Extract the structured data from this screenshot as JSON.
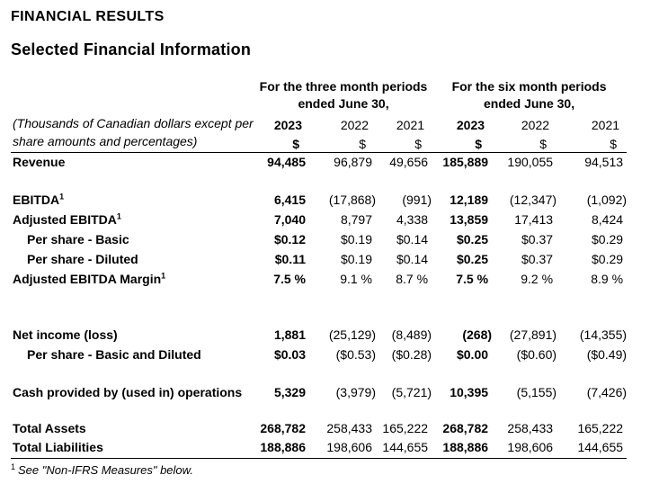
{
  "page": {
    "title": "FINANCIAL RESULTS",
    "subtitle": "Selected Financial Information"
  },
  "table": {
    "groups": [
      {
        "line1": "For the three month periods",
        "line2": "ended June 30,"
      },
      {
        "line1": "For the six month periods",
        "line2": "ended June 30,"
      }
    ],
    "note_line1": "(Thousands of Canadian dollars except per",
    "note_line2": "share amounts and percentages)",
    "years": [
      "2023",
      "2022",
      "2021",
      "2023",
      "2022",
      "2021"
    ],
    "currency": [
      "$",
      "$",
      "$",
      "$",
      "$",
      "$"
    ],
    "bold_value_columns": [
      0,
      3
    ],
    "rows": [
      {
        "type": "data",
        "label": "Revenue",
        "sup": "",
        "indent": false,
        "values": [
          "94,485",
          "96,879",
          "49,656",
          "185,889",
          "190,055",
          "94,513"
        ]
      },
      {
        "type": "spacer",
        "height": 20
      },
      {
        "type": "data",
        "label": "EBITDA",
        "sup": "1",
        "indent": false,
        "values": [
          "6,415",
          "(17,868)",
          "(991)",
          "12,189",
          "(12,347)",
          "(1,092)"
        ]
      },
      {
        "type": "data",
        "label": "Adjusted EBITDA",
        "sup": "1",
        "indent": false,
        "values": [
          "7,040",
          "8,797",
          "4,338",
          "13,859",
          "17,413",
          "8,424"
        ]
      },
      {
        "type": "data",
        "label": "Per share - Basic",
        "sup": "",
        "indent": true,
        "values": [
          "$0.12",
          "$0.19",
          "$0.14",
          "$0.25",
          "$0.37",
          "$0.29"
        ]
      },
      {
        "type": "data",
        "label": "Per share - Diluted",
        "sup": "",
        "indent": true,
        "values": [
          "$0.11",
          "$0.19",
          "$0.14",
          "$0.25",
          "$0.37",
          "$0.29"
        ]
      },
      {
        "type": "data",
        "label": "Adjusted EBITDA Margin",
        "sup": "1",
        "indent": false,
        "values": [
          "7.5 %",
          "9.1 %",
          "8.7 %",
          "7.5 %",
          "9.2 %",
          "8.9 %"
        ]
      },
      {
        "type": "spacer",
        "height": 40
      },
      {
        "type": "data",
        "label": "Net income (loss)",
        "sup": "",
        "indent": false,
        "values": [
          "1,881",
          "(25,129)",
          "(8,489)",
          "(268)",
          "(27,891)",
          "(14,355)"
        ]
      },
      {
        "type": "data",
        "label": "Per share - Basic and Diluted",
        "sup": "",
        "indent": true,
        "values": [
          "$0.03",
          "($0.53)",
          "($0.28)",
          "$0.00",
          "($0.60)",
          "($0.49)"
        ]
      },
      {
        "type": "spacer",
        "height": 20
      },
      {
        "type": "data",
        "label": "Cash provided by (used in) operations",
        "sup": "",
        "indent": false,
        "values": [
          "5,329",
          "(3,979)",
          "(5,721)",
          "10,395",
          "(5,155)",
          "(7,426)"
        ]
      },
      {
        "type": "spacer",
        "height": 18
      },
      {
        "type": "data",
        "label": "Total Assets",
        "sup": "",
        "indent": false,
        "values": [
          "268,782",
          "258,433",
          "165,222",
          "268,782",
          "258,433",
          "165,222"
        ]
      },
      {
        "type": "data",
        "label": "Total Liabilities",
        "sup": "",
        "indent": false,
        "values": [
          "188,886",
          "198,606",
          "144,655",
          "188,886",
          "198,606",
          "144,655"
        ]
      }
    ],
    "footnote": {
      "sup": "1",
      "text": "See \"Non-IFRS Measures\" below."
    }
  }
}
